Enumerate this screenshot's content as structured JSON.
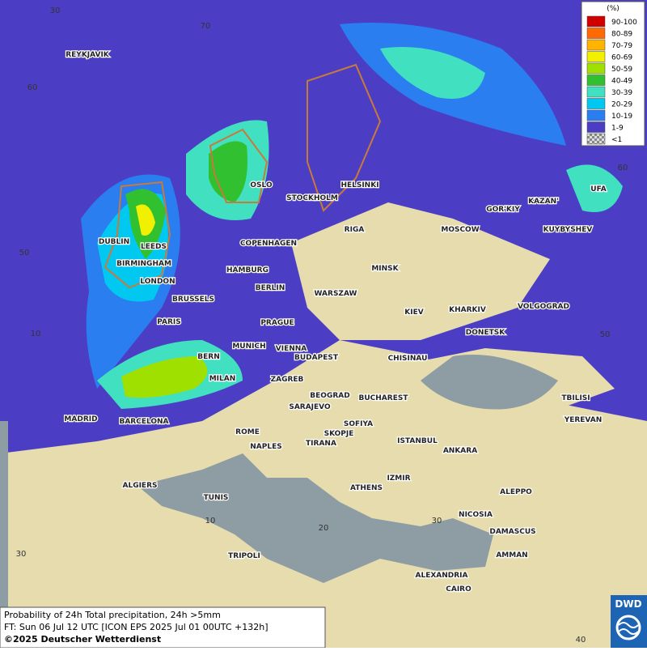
{
  "map": {
    "cities": [
      "REYKJAVIK",
      "OSLO",
      "STOCKHOLM",
      "HELSINKI",
      "DUBLIN",
      "LEEDS",
      "BIRMINGHAM",
      "LONDON",
      "COPENHAGEN",
      "RIGA",
      "MOSCOW",
      "GOR'KIY",
      "KAZAN'",
      "UFA",
      "KUYBYSHEV",
      "HAMBURG",
      "BERLIN",
      "MINSK",
      "WARSZAW",
      "BRUSSELS",
      "PARIS",
      "PRAGUE",
      "KIEV",
      "KHARKIV",
      "VOLGOGRAD",
      "DONETSK",
      "MUNICH",
      "VIENNA",
      "BUDAPEST",
      "CHISINAU",
      "BERN",
      "MILAN",
      "ZAGREB",
      "BEOGRAD",
      "BUCHAREST",
      "TBILISI",
      "YEREVAN",
      "MADRID",
      "BARCELONA",
      "SARAJEVO",
      "SOFIYA",
      "ROME",
      "SKOPJE",
      "TIRANA",
      "ISTANBUL",
      "ANKARA",
      "NAPLES",
      "ALGIERS",
      "IZMIR",
      "ATHENS",
      "ALEPPO",
      "TUNIS",
      "NICOSIA",
      "DAMASCUS",
      "TRIPOLI",
      "AMMAN",
      "ALEXANDRIA",
      "CAIRO"
    ],
    "grid_labels": [
      "30",
      "70",
      "60",
      "50",
      "10",
      "10",
      "20",
      "30",
      "30",
      "40",
      "60",
      "50"
    ]
  },
  "legend": {
    "title": "(%)",
    "items": [
      {
        "label": "90-100",
        "color": "#d00000"
      },
      {
        "label": "80-89",
        "color": "#ff6a00"
      },
      {
        "label": "70-79",
        "color": "#ffb400"
      },
      {
        "label": "60-69",
        "color": "#f0f000"
      },
      {
        "label": "50-59",
        "color": "#a0e000"
      },
      {
        "label": "40-49",
        "color": "#30c030"
      },
      {
        "label": "30-39",
        "color": "#40e0c0"
      },
      {
        "label": "20-29",
        "color": "#00c8f0"
      },
      {
        "label": "10-19",
        "color": "#2a7ef0"
      },
      {
        "label": "1-9",
        "color": "#4c3ec4"
      },
      {
        "label": "<1",
        "color": "pattern"
      }
    ]
  },
  "footer": {
    "lines": [
      "Probability of 24h Total precipitation, 24h >5mm",
      "FT: Sun 06 Jul 12 UTC [ICON EPS 2025 Jul 01 00UTC +132h]",
      "©2025 Deutscher Wetterdienst"
    ]
  },
  "logo": "DWD"
}
